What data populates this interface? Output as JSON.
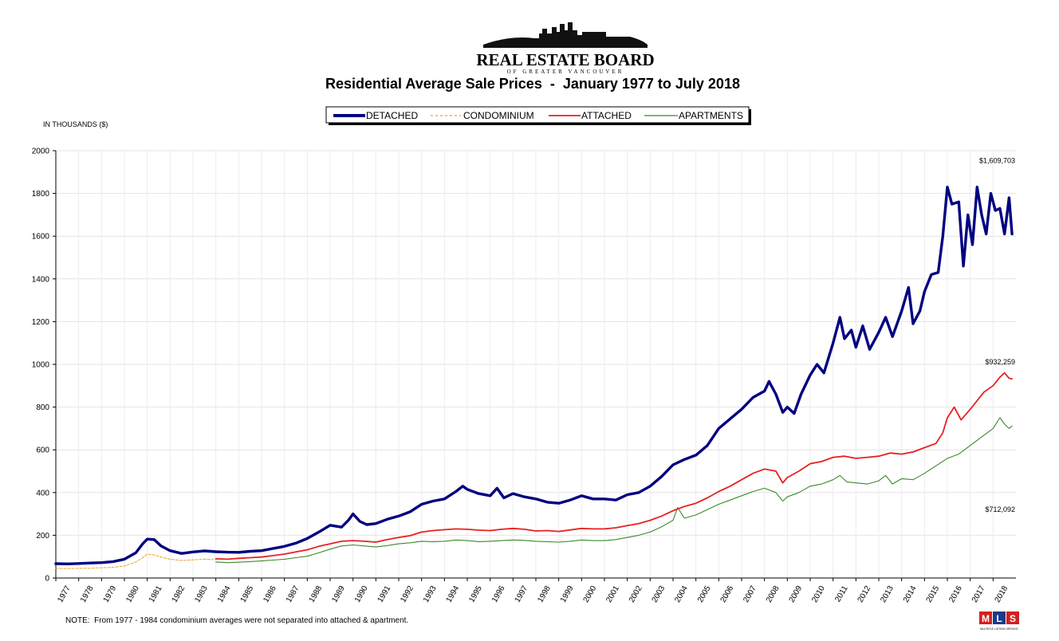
{
  "logo": {
    "name": "REAL ESTATE BOARD",
    "sub": "OF GREATER VANCOUVER"
  },
  "chart_data": {
    "type": "line",
    "title": "Residential Average Sale Prices  -  January 1977 to July 2018",
    "ylabel": "IN THOUSANDS ($)",
    "xlabel": "",
    "ylim": [
      0,
      2000
    ],
    "yticks": [
      0,
      200,
      400,
      600,
      800,
      1000,
      1200,
      1400,
      1600,
      1800,
      2000
    ],
    "xticks": [
      "1977",
      "1978",
      "1979",
      "1980",
      "1981",
      "1982",
      "1983",
      "1984",
      "1985",
      "1986",
      "1987",
      "1988",
      "1989",
      "1990",
      "1991",
      "1992",
      "1993",
      "1994",
      "1995",
      "1996",
      "1997",
      "1998",
      "1999",
      "2000",
      "2001",
      "2002",
      "2003",
      "2004",
      "2005",
      "2006",
      "2007",
      "2008",
      "2009",
      "2010",
      "2011",
      "2012",
      "2013",
      "2014",
      "2015",
      "2016",
      "2017",
      "2018"
    ],
    "grid": true,
    "legend_placement": "top-center",
    "series": [
      {
        "name": "DETACHED",
        "color": "#000080",
        "style": "solid-thick",
        "points": [
          [
            1977.0,
            67
          ],
          [
            1977.5,
            66
          ],
          [
            1978.0,
            68
          ],
          [
            1978.5,
            70
          ],
          [
            1979.0,
            72
          ],
          [
            1979.5,
            77
          ],
          [
            1980.0,
            88
          ],
          [
            1980.5,
            118
          ],
          [
            1980.8,
            160
          ],
          [
            1981.0,
            182
          ],
          [
            1981.3,
            180
          ],
          [
            1981.6,
            150
          ],
          [
            1982.0,
            128
          ],
          [
            1982.5,
            115
          ],
          [
            1983.0,
            122
          ],
          [
            1983.5,
            127
          ],
          [
            1984.0,
            123
          ],
          [
            1984.5,
            121
          ],
          [
            1985.0,
            120
          ],
          [
            1985.5,
            125
          ],
          [
            1986.0,
            128
          ],
          [
            1986.5,
            138
          ],
          [
            1987.0,
            148
          ],
          [
            1987.5,
            163
          ],
          [
            1988.0,
            185
          ],
          [
            1988.5,
            215
          ],
          [
            1989.0,
            247
          ],
          [
            1989.5,
            238
          ],
          [
            1989.8,
            270
          ],
          [
            1990.0,
            300
          ],
          [
            1990.3,
            265
          ],
          [
            1990.6,
            250
          ],
          [
            1991.0,
            255
          ],
          [
            1991.5,
            275
          ],
          [
            1992.0,
            290
          ],
          [
            1992.5,
            310
          ],
          [
            1993.0,
            345
          ],
          [
            1993.5,
            360
          ],
          [
            1994.0,
            370
          ],
          [
            1994.5,
            405
          ],
          [
            1994.8,
            430
          ],
          [
            1995.0,
            415
          ],
          [
            1995.5,
            395
          ],
          [
            1996.0,
            385
          ],
          [
            1996.3,
            420
          ],
          [
            1996.6,
            375
          ],
          [
            1997.0,
            395
          ],
          [
            1997.5,
            380
          ],
          [
            1998.0,
            370
          ],
          [
            1998.5,
            355
          ],
          [
            1999.0,
            350
          ],
          [
            1999.5,
            365
          ],
          [
            2000.0,
            385
          ],
          [
            2000.5,
            370
          ],
          [
            2001.0,
            370
          ],
          [
            2001.5,
            365
          ],
          [
            2002.0,
            390
          ],
          [
            2002.5,
            400
          ],
          [
            2003.0,
            430
          ],
          [
            2003.5,
            475
          ],
          [
            2004.0,
            530
          ],
          [
            2004.5,
            555
          ],
          [
            2005.0,
            575
          ],
          [
            2005.5,
            620
          ],
          [
            2006.0,
            700
          ],
          [
            2006.5,
            745
          ],
          [
            2007.0,
            790
          ],
          [
            2007.5,
            845
          ],
          [
            2008.0,
            875
          ],
          [
            2008.2,
            920
          ],
          [
            2008.5,
            860
          ],
          [
            2008.8,
            775
          ],
          [
            2009.0,
            800
          ],
          [
            2009.3,
            770
          ],
          [
            2009.6,
            860
          ],
          [
            2010.0,
            950
          ],
          [
            2010.3,
            1000
          ],
          [
            2010.6,
            960
          ],
          [
            2011.0,
            1100
          ],
          [
            2011.3,
            1220
          ],
          [
            2011.5,
            1120
          ],
          [
            2011.8,
            1160
          ],
          [
            2012.0,
            1080
          ],
          [
            2012.3,
            1180
          ],
          [
            2012.6,
            1070
          ],
          [
            2013.0,
            1150
          ],
          [
            2013.3,
            1220
          ],
          [
            2013.6,
            1130
          ],
          [
            2014.0,
            1250
          ],
          [
            2014.3,
            1360
          ],
          [
            2014.5,
            1190
          ],
          [
            2014.8,
            1250
          ],
          [
            2015.0,
            1340
          ],
          [
            2015.3,
            1420
          ],
          [
            2015.6,
            1430
          ],
          [
            2015.8,
            1600
          ],
          [
            2016.0,
            1830
          ],
          [
            2016.2,
            1750
          ],
          [
            2016.5,
            1760
          ],
          [
            2016.7,
            1460
          ],
          [
            2016.9,
            1700
          ],
          [
            2017.1,
            1560
          ],
          [
            2017.3,
            1830
          ],
          [
            2017.5,
            1700
          ],
          [
            2017.7,
            1610
          ],
          [
            2017.9,
            1800
          ],
          [
            2018.1,
            1720
          ],
          [
            2018.3,
            1730
          ],
          [
            2018.5,
            1610
          ],
          [
            2018.7,
            1780
          ],
          [
            2018.83,
            1610
          ]
        ]
      },
      {
        "name": "CONDOMINIUM",
        "color": "#f0a020",
        "style": "dashed",
        "points": [
          [
            1977.0,
            45
          ],
          [
            1977.5,
            44
          ],
          [
            1978.0,
            45
          ],
          [
            1978.5,
            46
          ],
          [
            1979.0,
            48
          ],
          [
            1979.5,
            50
          ],
          [
            1980.0,
            56
          ],
          [
            1980.5,
            75
          ],
          [
            1980.8,
            95
          ],
          [
            1981.0,
            112
          ],
          [
            1981.3,
            108
          ],
          [
            1981.6,
            98
          ],
          [
            1982.0,
            88
          ],
          [
            1982.5,
            82
          ],
          [
            1983.0,
            85
          ],
          [
            1983.5,
            88
          ],
          [
            1984.0,
            86
          ]
        ]
      },
      {
        "name": "ATTACHED",
        "color": "#e82020",
        "style": "solid",
        "points": [
          [
            1984.0,
            90
          ],
          [
            1984.5,
            88
          ],
          [
            1985.0,
            92
          ],
          [
            1985.5,
            95
          ],
          [
            1986.0,
            98
          ],
          [
            1986.5,
            105
          ],
          [
            1987.0,
            112
          ],
          [
            1987.5,
            122
          ],
          [
            1988.0,
            132
          ],
          [
            1988.5,
            148
          ],
          [
            1989.0,
            160
          ],
          [
            1989.5,
            172
          ],
          [
            1990.0,
            175
          ],
          [
            1990.5,
            172
          ],
          [
            1991.0,
            168
          ],
          [
            1991.5,
            180
          ],
          [
            1992.0,
            190
          ],
          [
            1992.5,
            198
          ],
          [
            1993.0,
            215
          ],
          [
            1993.5,
            222
          ],
          [
            1994.0,
            226
          ],
          [
            1994.5,
            230
          ],
          [
            1995.0,
            228
          ],
          [
            1995.5,
            224
          ],
          [
            1996.0,
            222
          ],
          [
            1996.5,
            228
          ],
          [
            1997.0,
            232
          ],
          [
            1997.5,
            228
          ],
          [
            1998.0,
            220
          ],
          [
            1998.5,
            222
          ],
          [
            1999.0,
            218
          ],
          [
            1999.5,
            225
          ],
          [
            2000.0,
            232
          ],
          [
            2000.5,
            230
          ],
          [
            2001.0,
            230
          ],
          [
            2001.5,
            235
          ],
          [
            2002.0,
            245
          ],
          [
            2002.5,
            255
          ],
          [
            2003.0,
            270
          ],
          [
            2003.5,
            290
          ],
          [
            2004.0,
            315
          ],
          [
            2004.5,
            335
          ],
          [
            2005.0,
            350
          ],
          [
            2005.5,
            375
          ],
          [
            2006.0,
            405
          ],
          [
            2006.5,
            430
          ],
          [
            2007.0,
            460
          ],
          [
            2007.5,
            490
          ],
          [
            2008.0,
            510
          ],
          [
            2008.5,
            500
          ],
          [
            2008.8,
            445
          ],
          [
            2009.0,
            470
          ],
          [
            2009.5,
            500
          ],
          [
            2010.0,
            535
          ],
          [
            2010.5,
            545
          ],
          [
            2011.0,
            565
          ],
          [
            2011.5,
            570
          ],
          [
            2012.0,
            560
          ],
          [
            2012.5,
            565
          ],
          [
            2013.0,
            570
          ],
          [
            2013.5,
            585
          ],
          [
            2014.0,
            580
          ],
          [
            2014.5,
            590
          ],
          [
            2015.0,
            610
          ],
          [
            2015.5,
            630
          ],
          [
            2015.8,
            680
          ],
          [
            2016.0,
            750
          ],
          [
            2016.3,
            800
          ],
          [
            2016.6,
            740
          ],
          [
            2017.0,
            790
          ],
          [
            2017.3,
            830
          ],
          [
            2017.6,
            870
          ],
          [
            2018.0,
            900
          ],
          [
            2018.3,
            940
          ],
          [
            2018.5,
            960
          ],
          [
            2018.7,
            935
          ],
          [
            2018.83,
            932
          ]
        ]
      },
      {
        "name": "APARTMENTS",
        "color": "#3a8a2a",
        "style": "solid-thin",
        "points": [
          [
            1984.0,
            75
          ],
          [
            1984.5,
            72
          ],
          [
            1985.0,
            74
          ],
          [
            1985.5,
            77
          ],
          [
            1986.0,
            80
          ],
          [
            1986.5,
            84
          ],
          [
            1987.0,
            88
          ],
          [
            1987.5,
            95
          ],
          [
            1988.0,
            102
          ],
          [
            1988.5,
            118
          ],
          [
            1989.0,
            135
          ],
          [
            1989.5,
            150
          ],
          [
            1990.0,
            155
          ],
          [
            1990.5,
            150
          ],
          [
            1991.0,
            145
          ],
          [
            1991.5,
            152
          ],
          [
            1992.0,
            160
          ],
          [
            1992.5,
            165
          ],
          [
            1993.0,
            172
          ],
          [
            1993.5,
            170
          ],
          [
            1994.0,
            172
          ],
          [
            1994.5,
            178
          ],
          [
            1995.0,
            175
          ],
          [
            1995.5,
            170
          ],
          [
            1996.0,
            172
          ],
          [
            1996.5,
            175
          ],
          [
            1997.0,
            178
          ],
          [
            1997.5,
            176
          ],
          [
            1998.0,
            172
          ],
          [
            1998.5,
            170
          ],
          [
            1999.0,
            168
          ],
          [
            1999.5,
            172
          ],
          [
            2000.0,
            178
          ],
          [
            2000.5,
            175
          ],
          [
            2001.0,
            175
          ],
          [
            2001.5,
            180
          ],
          [
            2002.0,
            190
          ],
          [
            2002.5,
            200
          ],
          [
            2003.0,
            215
          ],
          [
            2003.5,
            240
          ],
          [
            2004.0,
            270
          ],
          [
            2004.2,
            330
          ],
          [
            2004.5,
            280
          ],
          [
            2005.0,
            295
          ],
          [
            2005.5,
            320
          ],
          [
            2006.0,
            345
          ],
          [
            2006.5,
            365
          ],
          [
            2007.0,
            385
          ],
          [
            2007.5,
            405
          ],
          [
            2008.0,
            420
          ],
          [
            2008.5,
            400
          ],
          [
            2008.8,
            360
          ],
          [
            2009.0,
            380
          ],
          [
            2009.5,
            400
          ],
          [
            2010.0,
            430
          ],
          [
            2010.5,
            440
          ],
          [
            2011.0,
            460
          ],
          [
            2011.3,
            480
          ],
          [
            2011.6,
            450
          ],
          [
            2012.0,
            445
          ],
          [
            2012.5,
            440
          ],
          [
            2013.0,
            455
          ],
          [
            2013.3,
            480
          ],
          [
            2013.6,
            440
          ],
          [
            2014.0,
            465
          ],
          [
            2014.5,
            460
          ],
          [
            2015.0,
            490
          ],
          [
            2015.5,
            525
          ],
          [
            2016.0,
            560
          ],
          [
            2016.5,
            580
          ],
          [
            2017.0,
            620
          ],
          [
            2017.5,
            660
          ],
          [
            2018.0,
            700
          ],
          [
            2018.3,
            750
          ],
          [
            2018.5,
            720
          ],
          [
            2018.7,
            700
          ],
          [
            2018.83,
            712
          ]
        ]
      }
    ],
    "annotations": [
      {
        "text": "$1,609,703",
        "series": "DETACHED"
      },
      {
        "text": "$932,259",
        "series": "ATTACHED"
      },
      {
        "text": "$712,092",
        "series": "APARTMENTS"
      }
    ],
    "note": "NOTE:  From 1977 - 1984 condominium averages were not separated into attached & apartment."
  },
  "badge": {
    "letters": [
      "M",
      "L",
      "S"
    ],
    "caption": "MULTIPLE LISTING SERVICE"
  }
}
